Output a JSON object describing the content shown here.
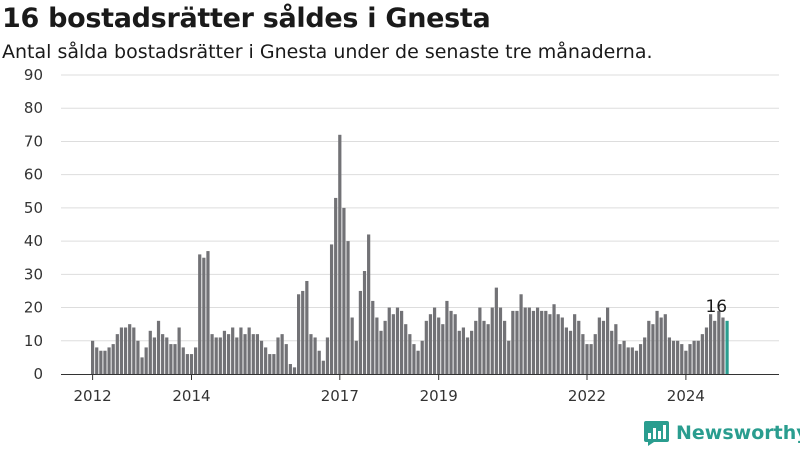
{
  "title": "16 bostadsrätter såldes i Gnesta",
  "subtitle": "Antal sålda bostadsrätter i Gnesta under de senaste tre månaderna.",
  "brand": {
    "name": "Newsworthy",
    "icon": "bar-chart-logo-icon"
  },
  "colors": {
    "bar": "#727276",
    "highlight": "#2a9d8f",
    "grid": "#dddddd",
    "axis": "#333333",
    "brand": "#2a9d8f"
  },
  "chart_data": {
    "type": "bar",
    "title": "16 bostadsrätter såldes i Gnesta",
    "subtitle": "Antal sålda bostadsrätter i Gnesta under de senaste tre månaderna.",
    "xlabel": "",
    "ylabel": "",
    "ylim": [
      0,
      90
    ],
    "yticks": [
      0,
      10,
      20,
      30,
      40,
      50,
      60,
      70,
      80,
      90
    ],
    "grid": true,
    "x_start": "2012-01",
    "x_end": "2024-09",
    "x_ticks": [
      {
        "label": "2012",
        "x": "2012-01"
      },
      {
        "label": "2014",
        "x": "2014-01"
      },
      {
        "label": "2017",
        "x": "2017-01"
      },
      {
        "label": "2019",
        "x": "2019-01"
      },
      {
        "label": "2022",
        "x": "2022-01"
      },
      {
        "label": "2024",
        "x": "2024-01"
      }
    ],
    "highlight_last": true,
    "last_value_label": "16",
    "values": [
      10,
      8,
      7,
      7,
      8,
      9,
      12,
      14,
      14,
      15,
      14,
      10,
      5,
      8,
      13,
      11,
      16,
      12,
      11,
      9,
      9,
      14,
      8,
      6,
      6,
      8,
      36,
      35,
      37,
      12,
      11,
      11,
      13,
      12,
      14,
      11,
      14,
      12,
      14,
      12,
      12,
      10,
      8,
      6,
      6,
      11,
      12,
      9,
      3,
      2,
      24,
      25,
      28,
      12,
      11,
      7,
      4,
      11,
      39,
      53,
      72,
      50,
      40,
      17,
      10,
      25,
      31,
      42,
      22,
      17,
      13,
      16,
      20,
      18,
      20,
      19,
      15,
      12,
      9,
      7,
      10,
      16,
      18,
      20,
      17,
      15,
      22,
      19,
      18,
      13,
      14,
      11,
      13,
      16,
      20,
      16,
      15,
      20,
      26,
      20,
      16,
      10,
      19,
      19,
      24,
      20,
      20,
      19,
      20,
      19,
      19,
      18,
      21,
      18,
      17,
      14,
      13,
      18,
      16,
      12,
      9,
      9,
      12,
      17,
      16,
      20,
      13,
      15,
      9,
      10,
      8,
      8,
      7,
      9,
      11,
      16,
      15,
      19,
      17,
      18,
      11,
      10,
      10,
      9,
      7,
      9,
      10,
      10,
      12,
      14,
      18,
      16,
      19,
      17,
      16
    ]
  }
}
